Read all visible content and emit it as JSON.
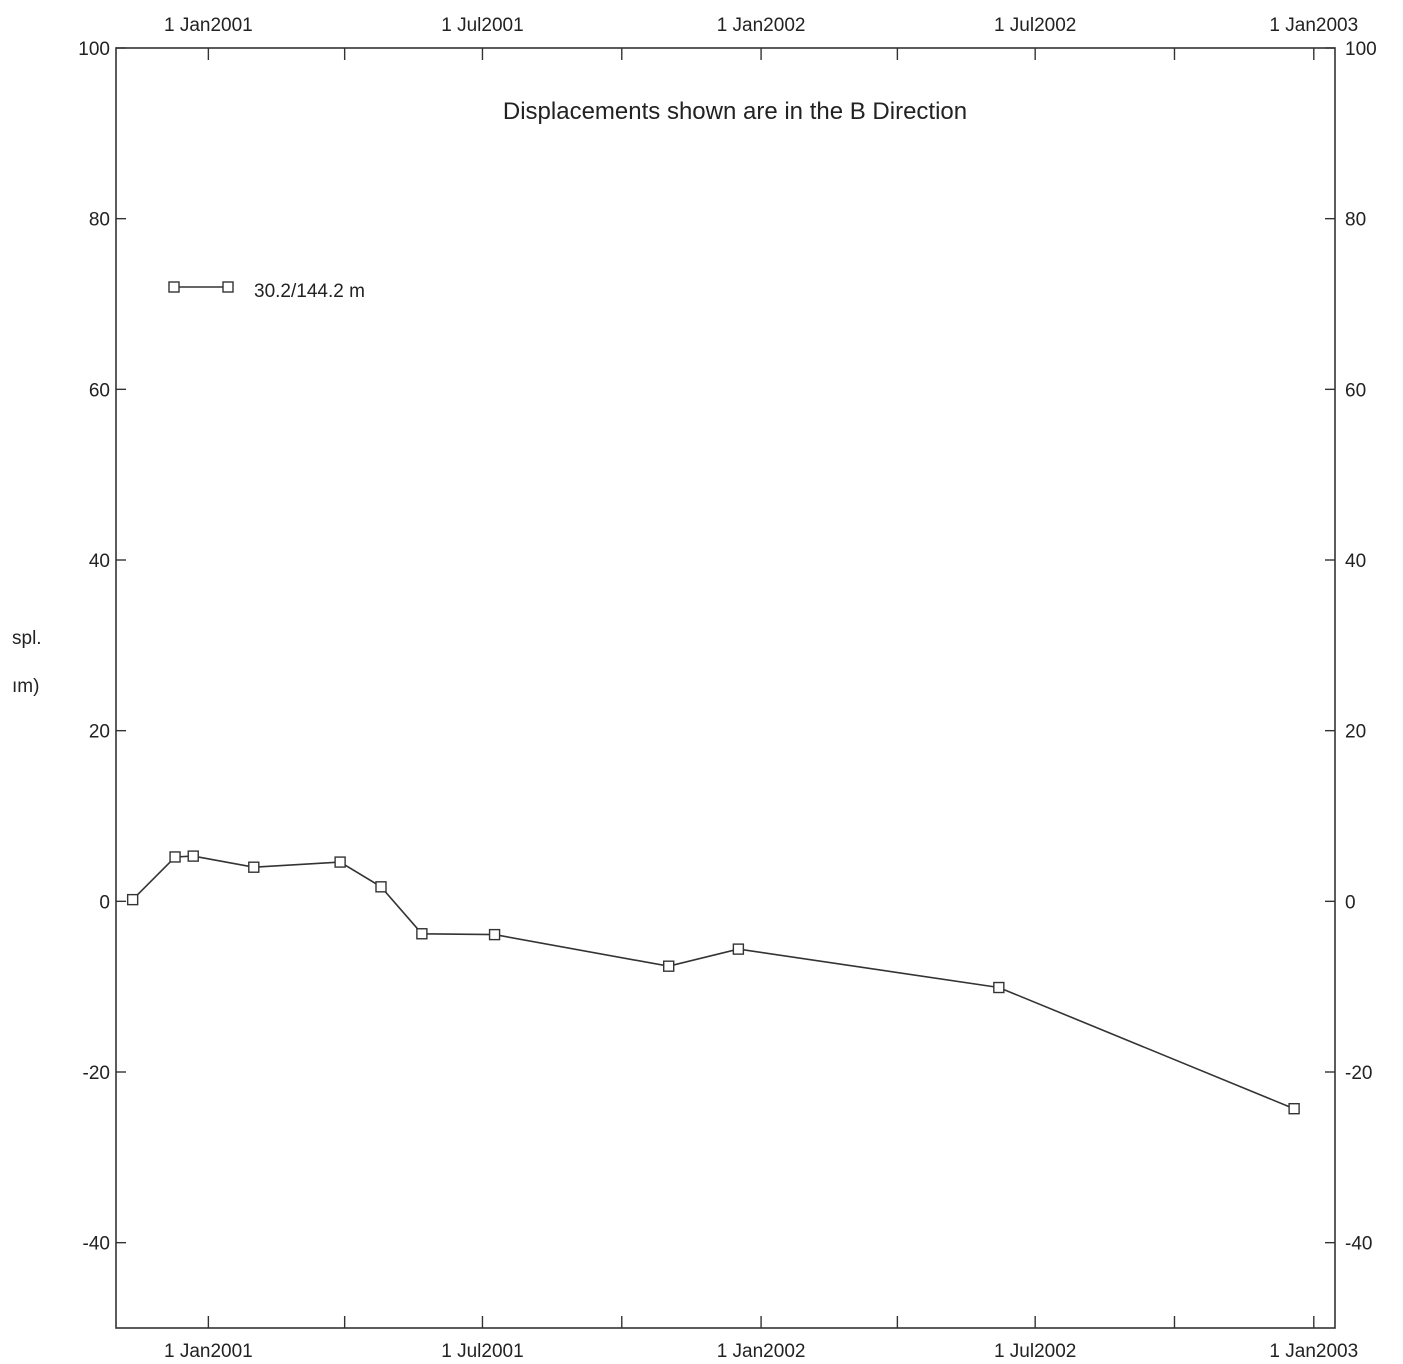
{
  "chart_data": {
    "type": "line",
    "title": "Displacements shown are in the  B Direction",
    "ylabel_fragments": [
      "spl.",
      "ım)"
    ],
    "xlim": [
      "2000-11-01",
      "2003-01-15"
    ],
    "ylim": [
      -50,
      100
    ],
    "yticks": [
      -40,
      -20,
      0,
      20,
      40,
      60,
      80,
      100
    ],
    "y_tick_labels": [
      "-40",
      "-20",
      "0",
      "20",
      "40",
      "60",
      "80",
      "100"
    ],
    "x_tick_labels": [
      "1 Jan2001",
      "1 Jul2001",
      "1 Jan2002",
      "1 Jul2002",
      "1 Jan2003"
    ],
    "x_tick_dates": [
      "2001-01-01",
      "2001-07-01",
      "2002-01-01",
      "2002-07-01",
      "2003-01-01"
    ],
    "legend_position": "upper-left",
    "grid": false,
    "series": [
      {
        "name": "30.2/144.2 m",
        "marker": "square",
        "x": [
          "2000-11-12",
          "2000-12-10",
          "2000-12-22",
          "2001-01-31",
          "2001-03-29",
          "2001-04-25",
          "2001-05-22",
          "2001-07-09",
          "2001-11-01",
          "2001-12-17",
          "2002-06-07",
          "2002-12-19"
        ],
        "y": [
          0.2,
          5.2,
          5.3,
          4.0,
          4.6,
          1.7,
          -3.8,
          -3.9,
          -7.6,
          -5.6,
          -10.1,
          -24.3
        ]
      }
    ]
  }
}
